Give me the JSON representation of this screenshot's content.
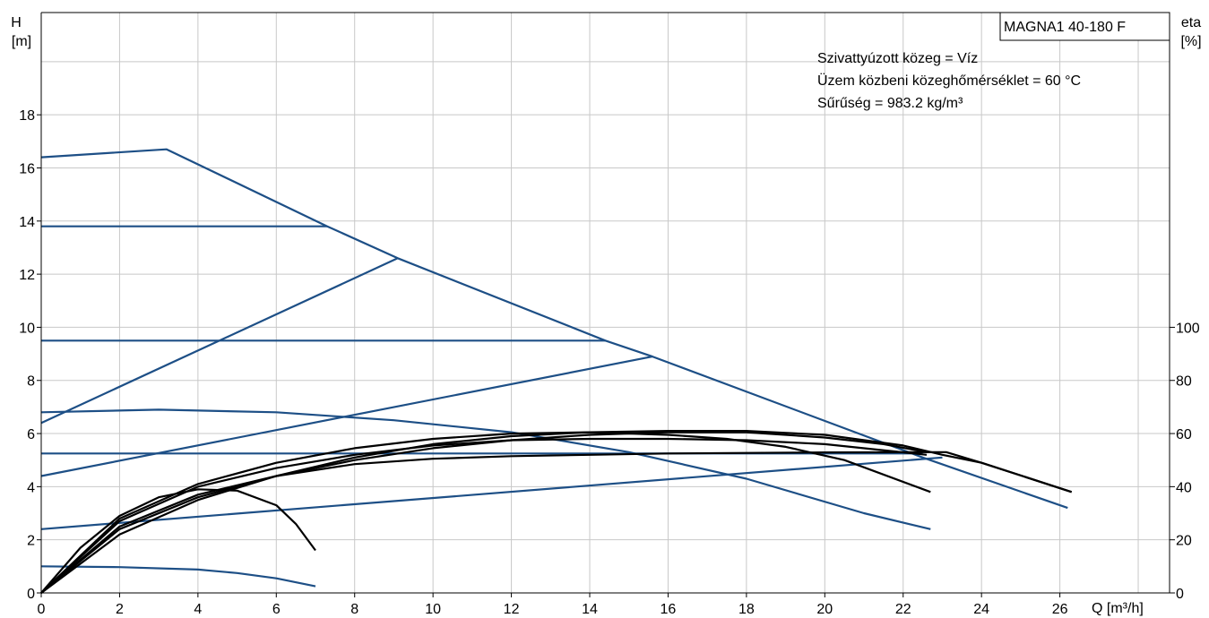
{
  "chart_data": {
    "type": "line",
    "title": "MAGNA1 40-180 F",
    "info": [
      "Szivattyúzott közeg = Víz",
      "Üzem közbeni közeghőmérséklet = 60 °C",
      "Sűrűség = 983.2 kg/m³"
    ],
    "xlabel": "Q [m³/h]",
    "ylabel": [
      "H",
      "[m]"
    ],
    "y2label": [
      "eta",
      "[%]"
    ],
    "xlim": [
      0,
      28.8
    ],
    "ylim": [
      0,
      21.85
    ],
    "y2lim": [
      0,
      100
    ],
    "x_ticks": [
      0,
      2,
      4,
      6,
      8,
      10,
      12,
      14,
      16,
      18,
      20,
      22,
      24,
      26
    ],
    "y_ticks": [
      0,
      2,
      4,
      6,
      8,
      10,
      12,
      14,
      16,
      18
    ],
    "y2_ticks": [
      0,
      20,
      40,
      60,
      80,
      100
    ],
    "grid": true,
    "colors": {
      "head": "#1d4f86",
      "efficiency": "#000000",
      "grid": "#c8c8c8"
    },
    "head_series": [
      {
        "x": [
          0,
          3.2,
          7.3,
          9.1,
          14.4,
          15.6,
          22.5,
          26.2
        ],
        "y": [
          16.4,
          16.7,
          13.8,
          12.6,
          9.5,
          8.9,
          5.1,
          3.2
        ]
      },
      {
        "x": [
          0,
          7.3
        ],
        "y": [
          13.8,
          13.8
        ]
      },
      {
        "x": [
          0,
          14.4
        ],
        "y": [
          9.5,
          9.5
        ]
      },
      {
        "x": [
          0,
          22.5
        ],
        "y": [
          5.25,
          5.25
        ]
      },
      {
        "x": [
          0,
          9.1
        ],
        "y": [
          6.4,
          12.6
        ]
      },
      {
        "x": [
          0,
          15.6
        ],
        "y": [
          4.4,
          8.9
        ]
      },
      {
        "x": [
          0,
          23.0
        ],
        "y": [
          2.4,
          5.1
        ]
      },
      {
        "x": [
          0,
          3,
          6,
          9,
          12,
          15,
          18,
          21,
          22.7
        ],
        "y": [
          6.8,
          6.9,
          6.8,
          6.5,
          6.05,
          5.3,
          4.3,
          3.0,
          2.4
        ]
      },
      {
        "x": [
          0,
          2,
          4,
          5,
          6,
          7
        ],
        "y": [
          1.0,
          0.97,
          0.88,
          0.75,
          0.55,
          0.25
        ]
      }
    ],
    "efficiency_series": [
      {
        "x": [
          0,
          1,
          2,
          3,
          4,
          5,
          6,
          6.5,
          7
        ],
        "y": [
          0,
          17,
          29,
          36,
          39,
          38.5,
          33,
          26,
          16
        ]
      },
      {
        "x": [
          0,
          2,
          4,
          6,
          8,
          10,
          12,
          14,
          16,
          18,
          20,
          22.7
        ],
        "y": [
          0,
          25,
          37,
          44,
          48.5,
          50.5,
          51.5,
          52,
          52.5,
          52.7,
          52.9,
          53
        ]
      },
      {
        "x": [
          0,
          2,
          4,
          6,
          8,
          10,
          12,
          14,
          16,
          18,
          20,
          22.6
        ],
        "y": [
          0,
          27,
          40,
          47,
          52,
          55.5,
          57.5,
          58,
          58,
          57.5,
          56,
          52
        ]
      },
      {
        "x": [
          0,
          2,
          4,
          6,
          8,
          10,
          12,
          14,
          16,
          17.5,
          19,
          20.5,
          22.7
        ],
        "y": [
          0,
          28,
          41,
          49,
          54.5,
          58,
          60,
          60.5,
          59.5,
          58,
          55,
          50,
          38
        ]
      },
      {
        "x": [
          0,
          2,
          4,
          6,
          8,
          10,
          12,
          14,
          16,
          18,
          20,
          21.5,
          22.6,
          23.1,
          24,
          26.3
        ],
        "y": [
          0,
          24,
          36,
          44,
          50,
          54.5,
          57.5,
          59.5,
          60.5,
          60.5,
          58.5,
          56,
          53,
          53,
          49,
          38
        ]
      },
      {
        "x": [
          0,
          2,
          4,
          6,
          8,
          10,
          12,
          14,
          16,
          18,
          20,
          22,
          23,
          24,
          26.3
        ],
        "y": [
          0,
          22,
          35,
          44,
          51,
          56,
          59,
          60.5,
          61,
          61,
          59.5,
          55.5,
          52,
          49,
          38
        ]
      }
    ]
  }
}
